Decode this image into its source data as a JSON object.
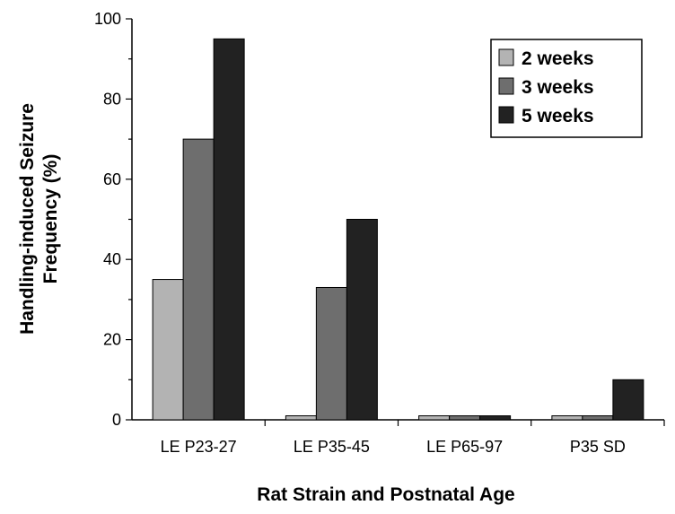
{
  "chart_data": {
    "type": "bar",
    "title": "",
    "xlabel": "Rat Strain and Postnatal Age",
    "ylabel_lines": [
      "Handling-induced Seizure",
      "Frequency (%)"
    ],
    "categories": [
      "LE P23-27",
      "LE P35-45",
      "LE P65-97",
      "P35 SD"
    ],
    "series": [
      {
        "name": "2 weeks",
        "color": "#b3b3b3",
        "values": [
          35,
          1,
          1,
          1
        ]
      },
      {
        "name": "3 weeks",
        "color": "#6e6e6e",
        "values": [
          70,
          33,
          1,
          1
        ]
      },
      {
        "name": "5 weeks",
        "color": "#222222",
        "values": [
          95,
          50,
          1,
          10
        ]
      }
    ],
    "ylim": [
      0,
      100
    ],
    "yticks": [
      0,
      20,
      40,
      60,
      80,
      100
    ],
    "grid": false,
    "legend_position": "top-right"
  }
}
